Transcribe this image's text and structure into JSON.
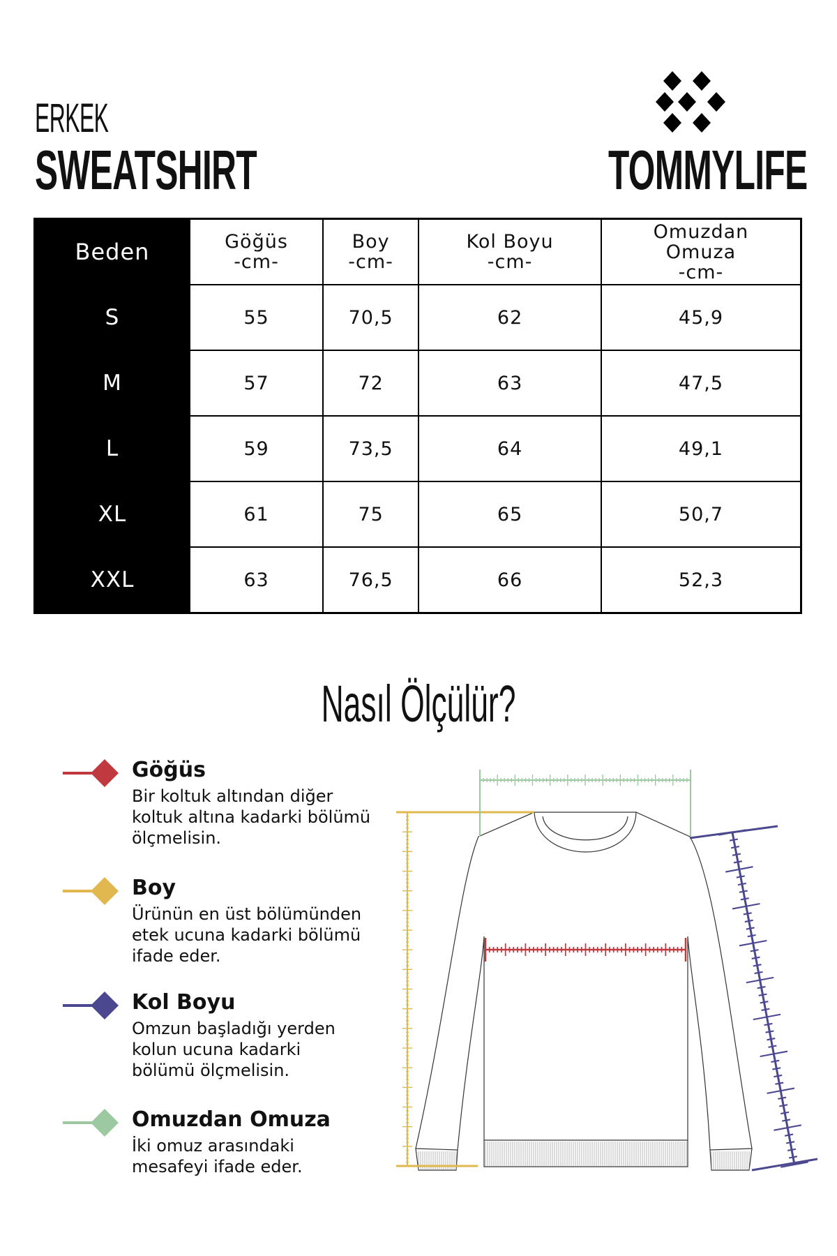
{
  "header": {
    "category": "ERKEK",
    "product": "SWEATSHIRT",
    "brand": "TOMMYLIFE",
    "logo_icon": "diamond-cluster-logo"
  },
  "table": {
    "columns": [
      {
        "label": "Beden",
        "unit": ""
      },
      {
        "label": "Göğüs",
        "unit": "-cm-"
      },
      {
        "label": "Boy",
        "unit": "-cm-"
      },
      {
        "label": "Kol Boyu",
        "unit": "-cm-"
      },
      {
        "label": "Omuzdan Omuza",
        "label_line1": "Omuzdan",
        "label_line2": "Omuza",
        "unit": "-cm-"
      }
    ],
    "rows": [
      [
        "S",
        "55",
        "70,5",
        "62",
        "45,9"
      ],
      [
        "M",
        "57",
        "72",
        "63",
        "47,5"
      ],
      [
        "L",
        "59",
        "73,5",
        "64",
        "49,1"
      ],
      [
        "XL",
        "61",
        "75",
        "65",
        "50,7"
      ],
      [
        "XXL",
        "63",
        "76,5",
        "66",
        "52,3"
      ]
    ]
  },
  "guide": {
    "title": "Nasıl Ölçülür?",
    "items": [
      {
        "heading": "Göğüs",
        "lines": [
          "Bir koltuk altından diğer",
          "koltuk altına kadarki bölümü",
          "ölçmelisin."
        ],
        "color": "#c0393f"
      },
      {
        "heading": "Boy",
        "lines": [
          "Ürünün en üst bölümünden",
          "etek ucuna kadarki bölümü",
          "ifade eder."
        ],
        "color": "#e0b84f"
      },
      {
        "heading": "Kol Boyu",
        "lines": [
          "Omzun başladığı yerden",
          "kolun ucuna kadarki",
          "bölümü ölçmelisin."
        ],
        "color": "#4b4890"
      },
      {
        "heading": "Omuzdan Omuza",
        "lines": [
          "İki omuz arasındaki",
          "mesafeyi ifade eder."
        ],
        "color": "#9cc9a0"
      }
    ]
  }
}
